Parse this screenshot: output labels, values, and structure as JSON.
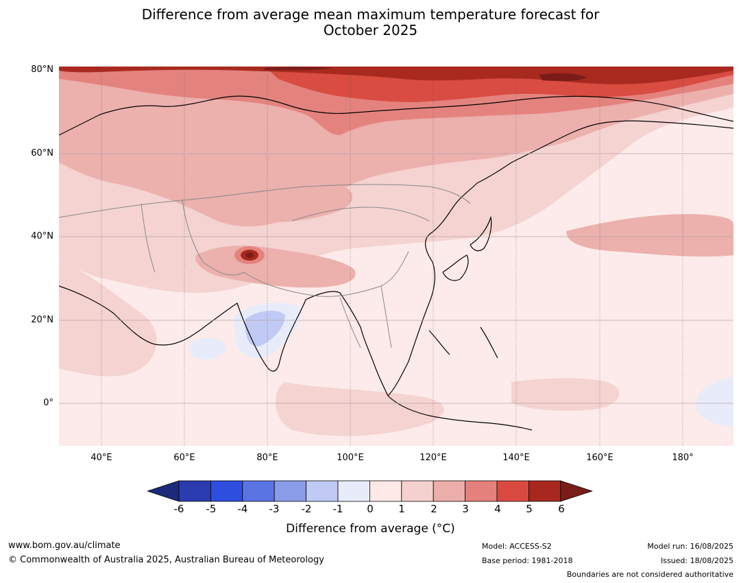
{
  "title": {
    "line1": "Difference from average mean maximum temperature forecast for",
    "line2": "October 2025"
  },
  "axes": {
    "lat_labels": [
      "80°N",
      "60°N",
      "40°N",
      "20°N",
      "0°"
    ],
    "lon_labels": [
      "40°E",
      "60°E",
      "80°E",
      "100°E",
      "120°E",
      "140°E",
      "160°E",
      "180°"
    ]
  },
  "colorbar": {
    "ticks": [
      "-6",
      "-5",
      "-4",
      "-3",
      "-2",
      "-1",
      "0",
      "1",
      "2",
      "3",
      "4",
      "5",
      "6"
    ],
    "colors": [
      "#1c2a7a",
      "#2a3cb0",
      "#2e4ee0",
      "#5a74e4",
      "#8a9ce8",
      "#c0caf4",
      "#e8ecfa",
      "#fce9e8",
      "#f4d0ce",
      "#ecaeab",
      "#e4817c",
      "#d84a40",
      "#a8281f",
      "#7a1d18"
    ],
    "label": "Difference from average (°C)"
  },
  "footer": {
    "website": "www.bom.gov.au/climate",
    "copyright": "© Commonwealth of Australia 2025, Australian Bureau of Meteorology",
    "model": "Model: ACCESS-S2",
    "base_period": "Base period: 1981-2018",
    "model_run": "Model run: 16/08/2025",
    "issued": "Issued: 18/08/2025",
    "boundaries_note": "Boundaries are not considered authoritative"
  }
}
